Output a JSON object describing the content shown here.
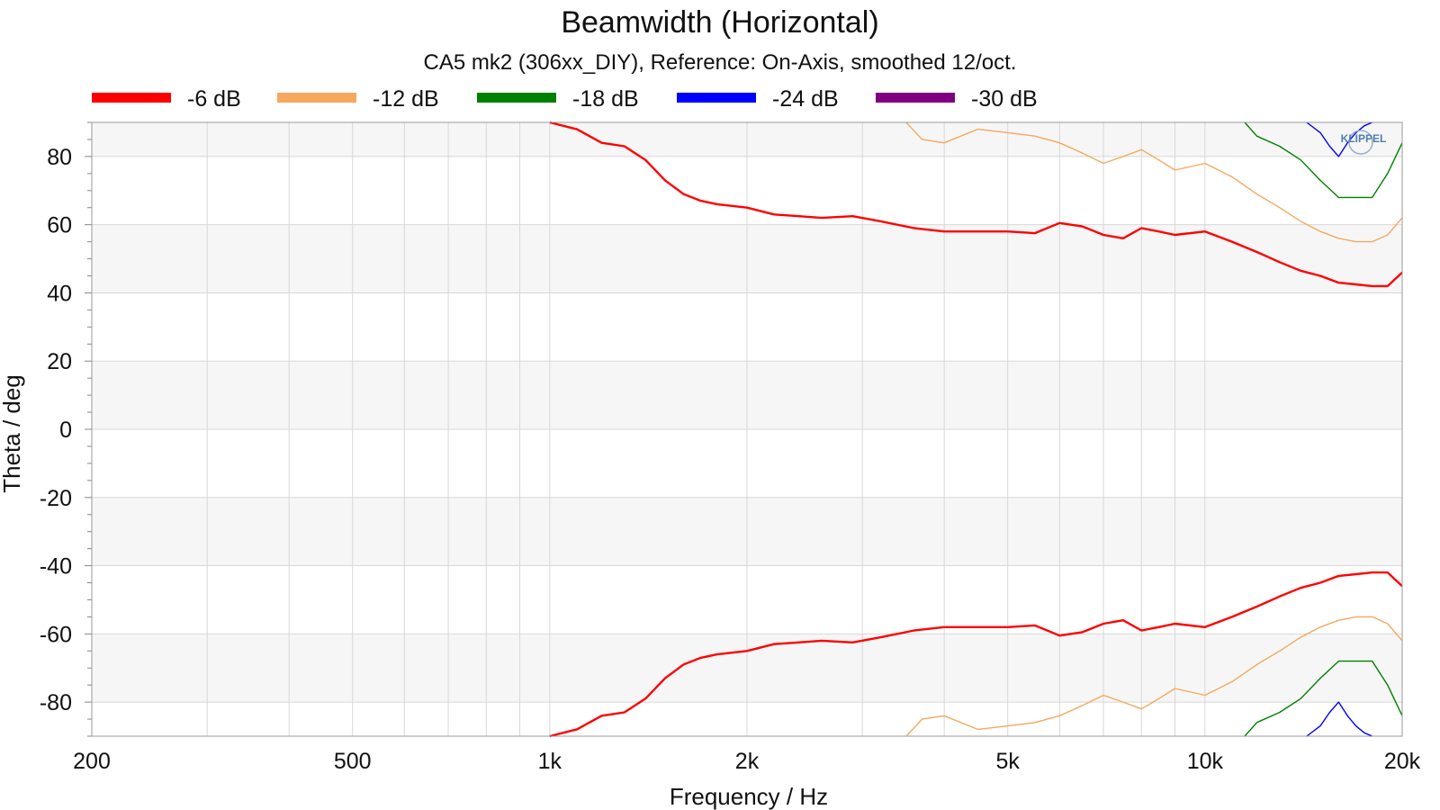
{
  "chart_data": {
    "type": "line",
    "title": "Beamwidth (Horizontal)",
    "subtitle": "CA5 mk2 (306xx_DIY), Reference: On-Axis, smoothed 12/oct.",
    "xlabel": "Frequency / Hz",
    "ylabel": "Theta / deg",
    "x_scale": "log",
    "xlim": [
      200,
      20000
    ],
    "ylim": [
      -90,
      90
    ],
    "x_ticks": [
      200,
      500,
      1000,
      2000,
      5000,
      10000,
      20000
    ],
    "x_tick_labels": [
      "200",
      "500",
      "1k",
      "2k",
      "5k",
      "10k",
      "20k"
    ],
    "y_ticks": [
      -80,
      -60,
      -40,
      -20,
      0,
      20,
      40,
      60,
      80
    ],
    "y_tick_labels": [
      "-80",
      "-60",
      "-40",
      "-20",
      "0",
      "20",
      "40",
      "60",
      "80"
    ],
    "grid": true,
    "legend_position": "top",
    "watermark": "KLIPPEL",
    "series": [
      {
        "name": "-6 dB",
        "color": "#ff0000",
        "upper": [
          [
            1000,
            90
          ],
          [
            1100,
            88
          ],
          [
            1200,
            84
          ],
          [
            1300,
            83
          ],
          [
            1400,
            79
          ],
          [
            1500,
            73
          ],
          [
            1600,
            69
          ],
          [
            1700,
            67
          ],
          [
            1800,
            66
          ],
          [
            2000,
            65
          ],
          [
            2200,
            63
          ],
          [
            2400,
            62.5
          ],
          [
            2600,
            62
          ],
          [
            2900,
            62.5
          ],
          [
            3200,
            61
          ],
          [
            3600,
            59
          ],
          [
            4000,
            58
          ],
          [
            4500,
            58
          ],
          [
            5000,
            58
          ],
          [
            5500,
            57.5
          ],
          [
            6000,
            60.5
          ],
          [
            6500,
            59.5
          ],
          [
            7000,
            57
          ],
          [
            7500,
            56
          ],
          [
            8000,
            59
          ],
          [
            8500,
            58
          ],
          [
            9000,
            57
          ],
          [
            10000,
            58
          ],
          [
            11000,
            55
          ],
          [
            12000,
            52
          ],
          [
            13000,
            49
          ],
          [
            14000,
            46.5
          ],
          [
            15000,
            45
          ],
          [
            16000,
            43
          ],
          [
            17000,
            42.5
          ],
          [
            18000,
            42
          ],
          [
            19000,
            42
          ],
          [
            20000,
            46
          ]
        ],
        "lower": [
          [
            1000,
            -90
          ],
          [
            1100,
            -88
          ],
          [
            1200,
            -84
          ],
          [
            1300,
            -83
          ],
          [
            1400,
            -79
          ],
          [
            1500,
            -73
          ],
          [
            1600,
            -69
          ],
          [
            1700,
            -67
          ],
          [
            1800,
            -66
          ],
          [
            2000,
            -65
          ],
          [
            2200,
            -63
          ],
          [
            2400,
            -62.5
          ],
          [
            2600,
            -62
          ],
          [
            2900,
            -62.5
          ],
          [
            3200,
            -61
          ],
          [
            3600,
            -59
          ],
          [
            4000,
            -58
          ],
          [
            4500,
            -58
          ],
          [
            5000,
            -58
          ],
          [
            5500,
            -57.5
          ],
          [
            6000,
            -60.5
          ],
          [
            6500,
            -59.5
          ],
          [
            7000,
            -57
          ],
          [
            7500,
            -56
          ],
          [
            8000,
            -59
          ],
          [
            8500,
            -58
          ],
          [
            9000,
            -57
          ],
          [
            10000,
            -58
          ],
          [
            11000,
            -55
          ],
          [
            12000,
            -52
          ],
          [
            13000,
            -49
          ],
          [
            14000,
            -46.5
          ],
          [
            15000,
            -45
          ],
          [
            16000,
            -43
          ],
          [
            17000,
            -42.5
          ],
          [
            18000,
            -42
          ],
          [
            19000,
            -42
          ],
          [
            20000,
            -46
          ]
        ]
      },
      {
        "name": "-12 dB",
        "color": "#f5a85e",
        "upper": [
          [
            3500,
            90
          ],
          [
            3700,
            85
          ],
          [
            4000,
            84
          ],
          [
            4500,
            88
          ],
          [
            5000,
            87
          ],
          [
            5500,
            86
          ],
          [
            6000,
            84
          ],
          [
            6500,
            81
          ],
          [
            7000,
            78
          ],
          [
            7500,
            80
          ],
          [
            8000,
            82
          ],
          [
            8500,
            79
          ],
          [
            9000,
            76
          ],
          [
            10000,
            78
          ],
          [
            11000,
            74
          ],
          [
            12000,
            69
          ],
          [
            13000,
            65
          ],
          [
            14000,
            61
          ],
          [
            15000,
            58
          ],
          [
            16000,
            56
          ],
          [
            17000,
            55
          ],
          [
            18000,
            55
          ],
          [
            19000,
            57
          ],
          [
            20000,
            62
          ]
        ],
        "lower": [
          [
            3500,
            -90
          ],
          [
            3700,
            -85
          ],
          [
            4000,
            -84
          ],
          [
            4500,
            -88
          ],
          [
            5000,
            -87
          ],
          [
            5500,
            -86
          ],
          [
            6000,
            -84
          ],
          [
            6500,
            -81
          ],
          [
            7000,
            -78
          ],
          [
            7500,
            -80
          ],
          [
            8000,
            -82
          ],
          [
            8500,
            -79
          ],
          [
            9000,
            -76
          ],
          [
            10000,
            -78
          ],
          [
            11000,
            -74
          ],
          [
            12000,
            -69
          ],
          [
            13000,
            -65
          ],
          [
            14000,
            -61
          ],
          [
            15000,
            -58
          ],
          [
            16000,
            -56
          ],
          [
            17000,
            -55
          ],
          [
            18000,
            -55
          ],
          [
            19000,
            -57
          ],
          [
            20000,
            -62
          ]
        ]
      },
      {
        "name": "-18 dB",
        "color": "#008000",
        "upper": [
          [
            11500,
            90
          ],
          [
            12000,
            86
          ],
          [
            13000,
            83
          ],
          [
            14000,
            79
          ],
          [
            15000,
            73
          ],
          [
            16000,
            68
          ],
          [
            17000,
            68
          ],
          [
            18000,
            68
          ],
          [
            19000,
            75
          ],
          [
            20000,
            84
          ]
        ],
        "lower": [
          [
            11500,
            -90
          ],
          [
            12000,
            -86
          ],
          [
            13000,
            -83
          ],
          [
            14000,
            -79
          ],
          [
            15000,
            -73
          ],
          [
            16000,
            -68
          ],
          [
            17000,
            -68
          ],
          [
            18000,
            -68
          ],
          [
            19000,
            -75
          ],
          [
            20000,
            -84
          ]
        ]
      },
      {
        "name": "-24 dB",
        "color": "#0000ff",
        "upper": [
          [
            14300,
            90
          ],
          [
            15000,
            87
          ],
          [
            15500,
            83
          ],
          [
            16000,
            80
          ],
          [
            16500,
            84
          ],
          [
            17000,
            87
          ],
          [
            17500,
            89
          ],
          [
            18000,
            90
          ]
        ],
        "lower": [
          [
            14300,
            -90
          ],
          [
            15000,
            -87
          ],
          [
            15500,
            -83
          ],
          [
            16000,
            -80
          ],
          [
            16500,
            -84
          ],
          [
            17000,
            -87
          ],
          [
            17500,
            -89
          ],
          [
            18000,
            -90
          ]
        ]
      },
      {
        "name": "-30 dB",
        "color": "#800080",
        "upper": [],
        "lower": []
      }
    ]
  }
}
